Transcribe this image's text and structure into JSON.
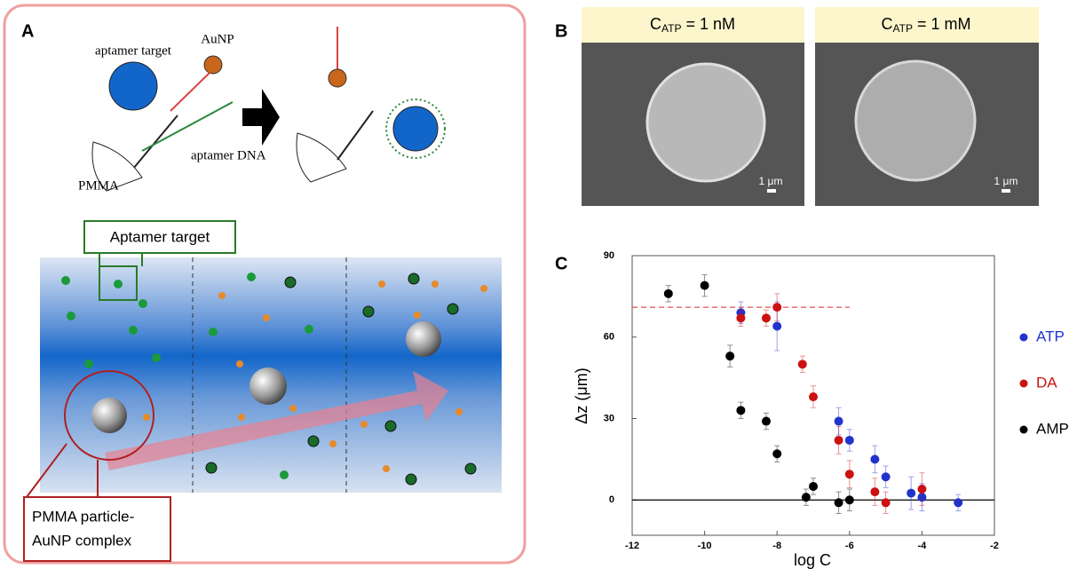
{
  "panel_a": {
    "label": "A",
    "aptamer_target": "aptamer target",
    "aunp": "AuNP",
    "pmma": "PMMA",
    "aptamer_dna": "aptamer DNA",
    "callout_target": "Aptamer target",
    "callout_complex": [
      "PMMA particle-",
      "AuNP complex"
    ]
  },
  "panel_b": {
    "label": "B",
    "images": [
      {
        "symbol": "C",
        "subscript": "ATP",
        "condition": " = 1 nM",
        "scale_bar": "1 μm"
      },
      {
        "symbol": "C",
        "subscript": "ATP",
        "condition": " = 1 mM",
        "scale_bar": "1 μm"
      }
    ]
  },
  "panel_c": {
    "label": "C"
  },
  "chart_data": {
    "type": "scatter",
    "x_label": "log C",
    "y_label": "Δz (μm)",
    "xlim": [
      -12,
      -2
    ],
    "xticks": [
      -12,
      -10,
      -8,
      -6,
      -4,
      -2
    ],
    "ylim": [
      -13,
      90
    ],
    "yticks": [
      0,
      30,
      60,
      90
    ],
    "legend": "right",
    "hlines": [
      {
        "value": 71,
        "xlim": [
          -12,
          -6
        ],
        "color": "#e05050",
        "style": "dashed"
      },
      {
        "value": 0,
        "color": "#000000",
        "style": "solid"
      }
    ],
    "series": [
      {
        "name": "ATP",
        "color": "#2233cc",
        "x": [
          -9,
          -8,
          -6.3,
          -6,
          -5.3,
          -5,
          -4.3,
          -4,
          -3
        ],
        "values": [
          69,
          64,
          29,
          22,
          15,
          8.5,
          2.5,
          1,
          -1
        ],
        "errors": [
          4,
          9,
          5,
          4,
          5,
          4,
          6,
          5,
          3
        ]
      },
      {
        "name": "DA",
        "color": "#cc1111",
        "x": [
          -9,
          -8.3,
          -8,
          -7.3,
          -7,
          -6.3,
          -6,
          -5.3,
          -5,
          -4
        ],
        "values": [
          67,
          67,
          71,
          50,
          38,
          22,
          9.5,
          3,
          -1,
          4
        ],
        "errors": [
          3,
          3,
          5,
          3,
          4,
          5,
          5,
          5,
          4,
          6
        ]
      },
      {
        "name": "AMP",
        "color": "#000000",
        "x": [
          -11,
          -10,
          -9.3,
          -9,
          -8.3,
          -8,
          -7.2,
          -7,
          -6.3,
          -6
        ],
        "values": [
          76,
          79,
          53,
          33,
          29,
          17,
          1,
          5,
          -1,
          0
        ],
        "errors": [
          3,
          4,
          4,
          3,
          3,
          3,
          3,
          3,
          4,
          4
        ]
      }
    ]
  }
}
